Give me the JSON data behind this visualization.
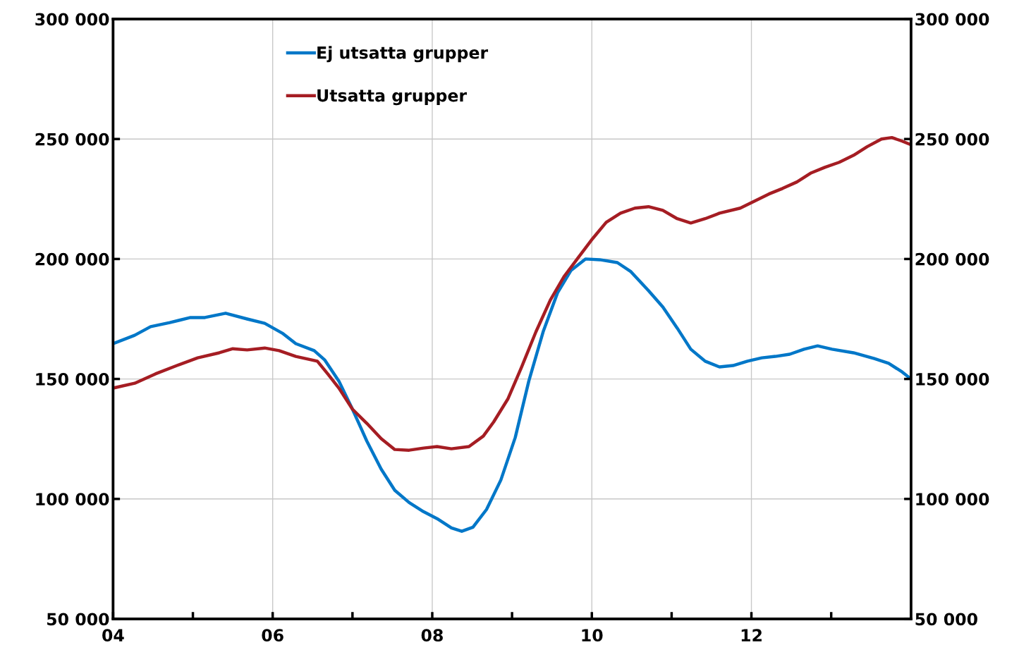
{
  "chart_data": {
    "type": "line",
    "xlim": [
      2004,
      2014
    ],
    "xticks": [
      {
        "value": 2004,
        "label": "04"
      },
      {
        "value": 2005,
        "label": null
      },
      {
        "value": 2006,
        "label": "06"
      },
      {
        "value": 2007,
        "label": null
      },
      {
        "value": 2008,
        "label": "08"
      },
      {
        "value": 2009,
        "label": null
      },
      {
        "value": 2010,
        "label": "10"
      },
      {
        "value": 2011,
        "label": null
      },
      {
        "value": 2012,
        "label": "12"
      },
      {
        "value": 2013,
        "label": null
      }
    ],
    "ylim": [
      50000,
      300000
    ],
    "yticks": [
      {
        "value": 50000,
        "label": "50 000"
      },
      {
        "value": 100000,
        "label": "100 000"
      },
      {
        "value": 150000,
        "label": "150 000"
      },
      {
        "value": 200000,
        "label": "200 000"
      },
      {
        "value": 250000,
        "label": "250 000"
      },
      {
        "value": 300000,
        "label": "300 000"
      }
    ],
    "y2lim": [
      50000,
      300000
    ],
    "y2ticks": [
      {
        "value": 50000,
        "label": "50 000"
      },
      {
        "value": 100000,
        "label": "100 000"
      },
      {
        "value": 150000,
        "label": "150 000"
      },
      {
        "value": 200000,
        "label": "200 000"
      },
      {
        "value": 250000,
        "label": "250 000"
      },
      {
        "value": 300000,
        "label": "300 000"
      }
    ],
    "grid": true,
    "legend": "top left",
    "line_style": "solid",
    "marker": "none",
    "series": [
      {
        "name": "Ej utsatta grupper",
        "color": "#0077c8",
        "x": [
          2004.0,
          2004.27,
          2004.47,
          2004.71,
          2004.97,
          2005.15,
          2005.41,
          2005.68,
          2005.9,
          2006.12,
          2006.29,
          2006.52,
          2006.65,
          2006.83,
          2007.0,
          2007.18,
          2007.36,
          2007.53,
          2007.71,
          2007.89,
          2008.06,
          2008.24,
          2008.37,
          2008.51,
          2008.68,
          2008.86,
          2009.04,
          2009.21,
          2009.39,
          2009.57,
          2009.74,
          2009.92,
          2010.1,
          2010.32,
          2010.49,
          2010.71,
          2010.89,
          2011.07,
          2011.24,
          2011.42,
          2011.6,
          2011.77,
          2011.95,
          2012.13,
          2012.3,
          2012.48,
          2012.66,
          2012.83,
          2013.01,
          2013.28,
          2013.54,
          2013.72,
          2013.89,
          2014.0
        ],
        "values": [
          164700,
          168200,
          171800,
          173500,
          175600,
          175600,
          177400,
          175000,
          173200,
          169100,
          164700,
          161800,
          158000,
          149100,
          137400,
          124100,
          112400,
          103600,
          98500,
          94700,
          91800,
          87900,
          86500,
          88200,
          95600,
          107900,
          125600,
          149100,
          169700,
          185900,
          195300,
          200000,
          199700,
          198500,
          194700,
          186800,
          180000,
          171200,
          162400,
          157400,
          155000,
          155600,
          157400,
          158800,
          159400,
          160300,
          162400,
          163800,
          162400,
          160900,
          158500,
          156500,
          152900,
          150000
        ]
      },
      {
        "name": "Utsatta grupper",
        "color": "#a51d23",
        "x": [
          2004.0,
          2004.27,
          2004.53,
          2004.8,
          2005.06,
          2005.33,
          2005.5,
          2005.68,
          2005.9,
          2006.08,
          2006.29,
          2006.56,
          2006.69,
          2006.83,
          2007.0,
          2007.18,
          2007.36,
          2007.53,
          2007.71,
          2007.89,
          2008.06,
          2008.24,
          2008.46,
          2008.64,
          2008.77,
          2008.95,
          2009.12,
          2009.3,
          2009.48,
          2009.65,
          2009.83,
          2010.01,
          2010.18,
          2010.36,
          2010.54,
          2010.71,
          2010.89,
          2011.07,
          2011.24,
          2011.42,
          2011.6,
          2011.86,
          2012.04,
          2012.22,
          2012.39,
          2012.57,
          2012.75,
          2012.92,
          2013.1,
          2013.28,
          2013.45,
          2013.63,
          2013.76,
          2013.89,
          2014.0
        ],
        "values": [
          146200,
          148200,
          152100,
          155600,
          158800,
          160900,
          162600,
          162100,
          162900,
          161800,
          159400,
          157400,
          152100,
          146200,
          137400,
          131500,
          125100,
          120600,
          120300,
          121200,
          121800,
          120900,
          121800,
          126200,
          132100,
          141800,
          155000,
          169700,
          182900,
          192600,
          200600,
          208500,
          215300,
          219100,
          221200,
          221800,
          220300,
          216800,
          215000,
          216800,
          219100,
          221200,
          224100,
          227100,
          229400,
          232100,
          235900,
          238200,
          240300,
          243200,
          246800,
          250000,
          250600,
          249100,
          247600
        ]
      }
    ]
  }
}
